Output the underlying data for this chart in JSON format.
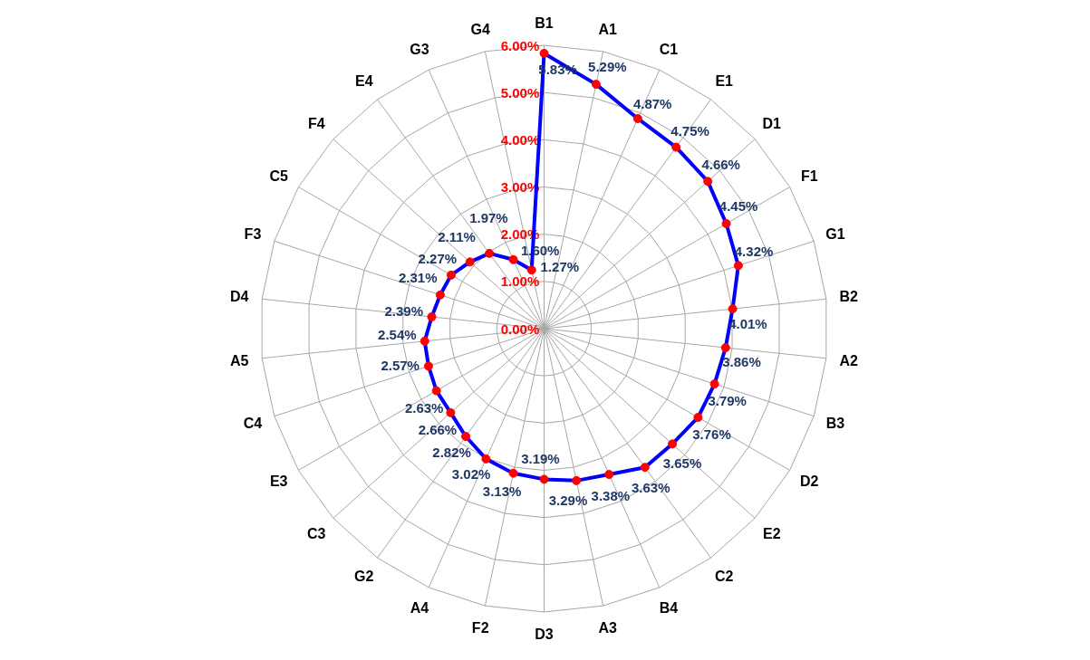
{
  "chart_data": {
    "type": "radar",
    "categories": [
      "B1",
      "A1",
      "C1",
      "E1",
      "D1",
      "F1",
      "G1",
      "B2",
      "A2",
      "B3",
      "D2",
      "E2",
      "C2",
      "B4",
      "A3",
      "D3",
      "F2",
      "A4",
      "G2",
      "C3",
      "E3",
      "C4",
      "A5",
      "D4",
      "F3",
      "C5",
      "F4",
      "E4",
      "G3",
      "G4"
    ],
    "series": [
      {
        "color": "#0000ff",
        "values": [
          5.83,
          5.29,
          4.87,
          4.75,
          4.66,
          4.45,
          4.32,
          4.01,
          3.86,
          3.79,
          3.76,
          3.65,
          3.63,
          3.38,
          3.29,
          3.19,
          3.13,
          3.02,
          2.82,
          2.66,
          2.63,
          2.57,
          2.54,
          2.39,
          2.31,
          2.27,
          2.11,
          1.97,
          1.6,
          1.27
        ],
        "value_labels": [
          "5.83%",
          "5.29%",
          "4.87%",
          "4.75%",
          "4.66%",
          "4.45%",
          "4.32%",
          "4.01%",
          "3.86%",
          "3.79%",
          "3.76%",
          "3.65%",
          "3.63%",
          "3.38%",
          "3.29%",
          "3.19%",
          "3.13%",
          "3.02%",
          "2.82%",
          "2.66%",
          "2.63%",
          "2.57%",
          "2.54%",
          "2.39%",
          "2.31%",
          "2.27%",
          "2.11%",
          "1.97%",
          "1.60%",
          "1.27%"
        ]
      }
    ],
    "ylim": [
      0,
      6
    ],
    "yticks": [
      {
        "value": 0,
        "label": "0.00%"
      },
      {
        "value": 1,
        "label": "1.00%"
      },
      {
        "value": 2,
        "label": "2.00%"
      },
      {
        "value": 3,
        "label": "3.00%"
      },
      {
        "value": 4,
        "label": "4.00%"
      },
      {
        "value": 5,
        "label": "5.00%"
      },
      {
        "value": 6,
        "label": "6.00%"
      }
    ],
    "grid": true,
    "marker": "circle",
    "line_style": "solid"
  }
}
